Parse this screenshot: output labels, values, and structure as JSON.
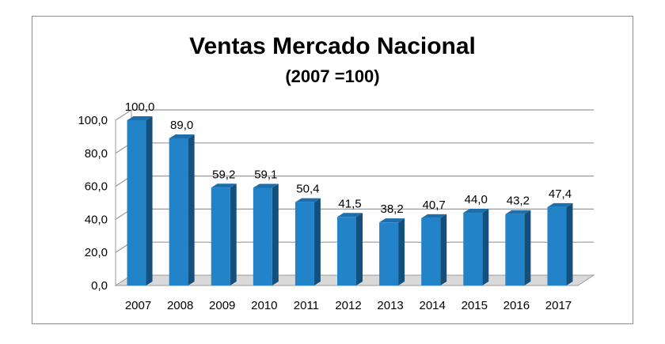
{
  "chart_data": {
    "type": "bar",
    "title": "Ventas Mercado Nacional",
    "subtitle": "(2007 =100)",
    "categories": [
      "2007",
      "2008",
      "2009",
      "2010",
      "2011",
      "2012",
      "2013",
      "2014",
      "2015",
      "2016",
      "2017"
    ],
    "values": [
      100.0,
      89.0,
      59.2,
      59.1,
      50.4,
      41.5,
      38.2,
      40.7,
      44.0,
      43.2,
      47.4
    ],
    "value_labels": [
      "100,0",
      "89,0",
      "59,2",
      "59,1",
      "50,4",
      "41,5",
      "38,2",
      "40,7",
      "44,0",
      "43,2",
      "47,4"
    ],
    "y_ticks": [
      "0,0",
      "20,0",
      "40,0",
      "60,0",
      "80,0",
      "100,0"
    ],
    "ylim": [
      0,
      100
    ],
    "xlabel": "",
    "ylabel": "",
    "grid": true,
    "legend": "none",
    "colors": {
      "bar_front": "#2283c8",
      "bar_side": "#15507c",
      "bar_top": "#1c6fab",
      "grid": "#9a9a9a",
      "floor": "#d9d9d9"
    }
  }
}
